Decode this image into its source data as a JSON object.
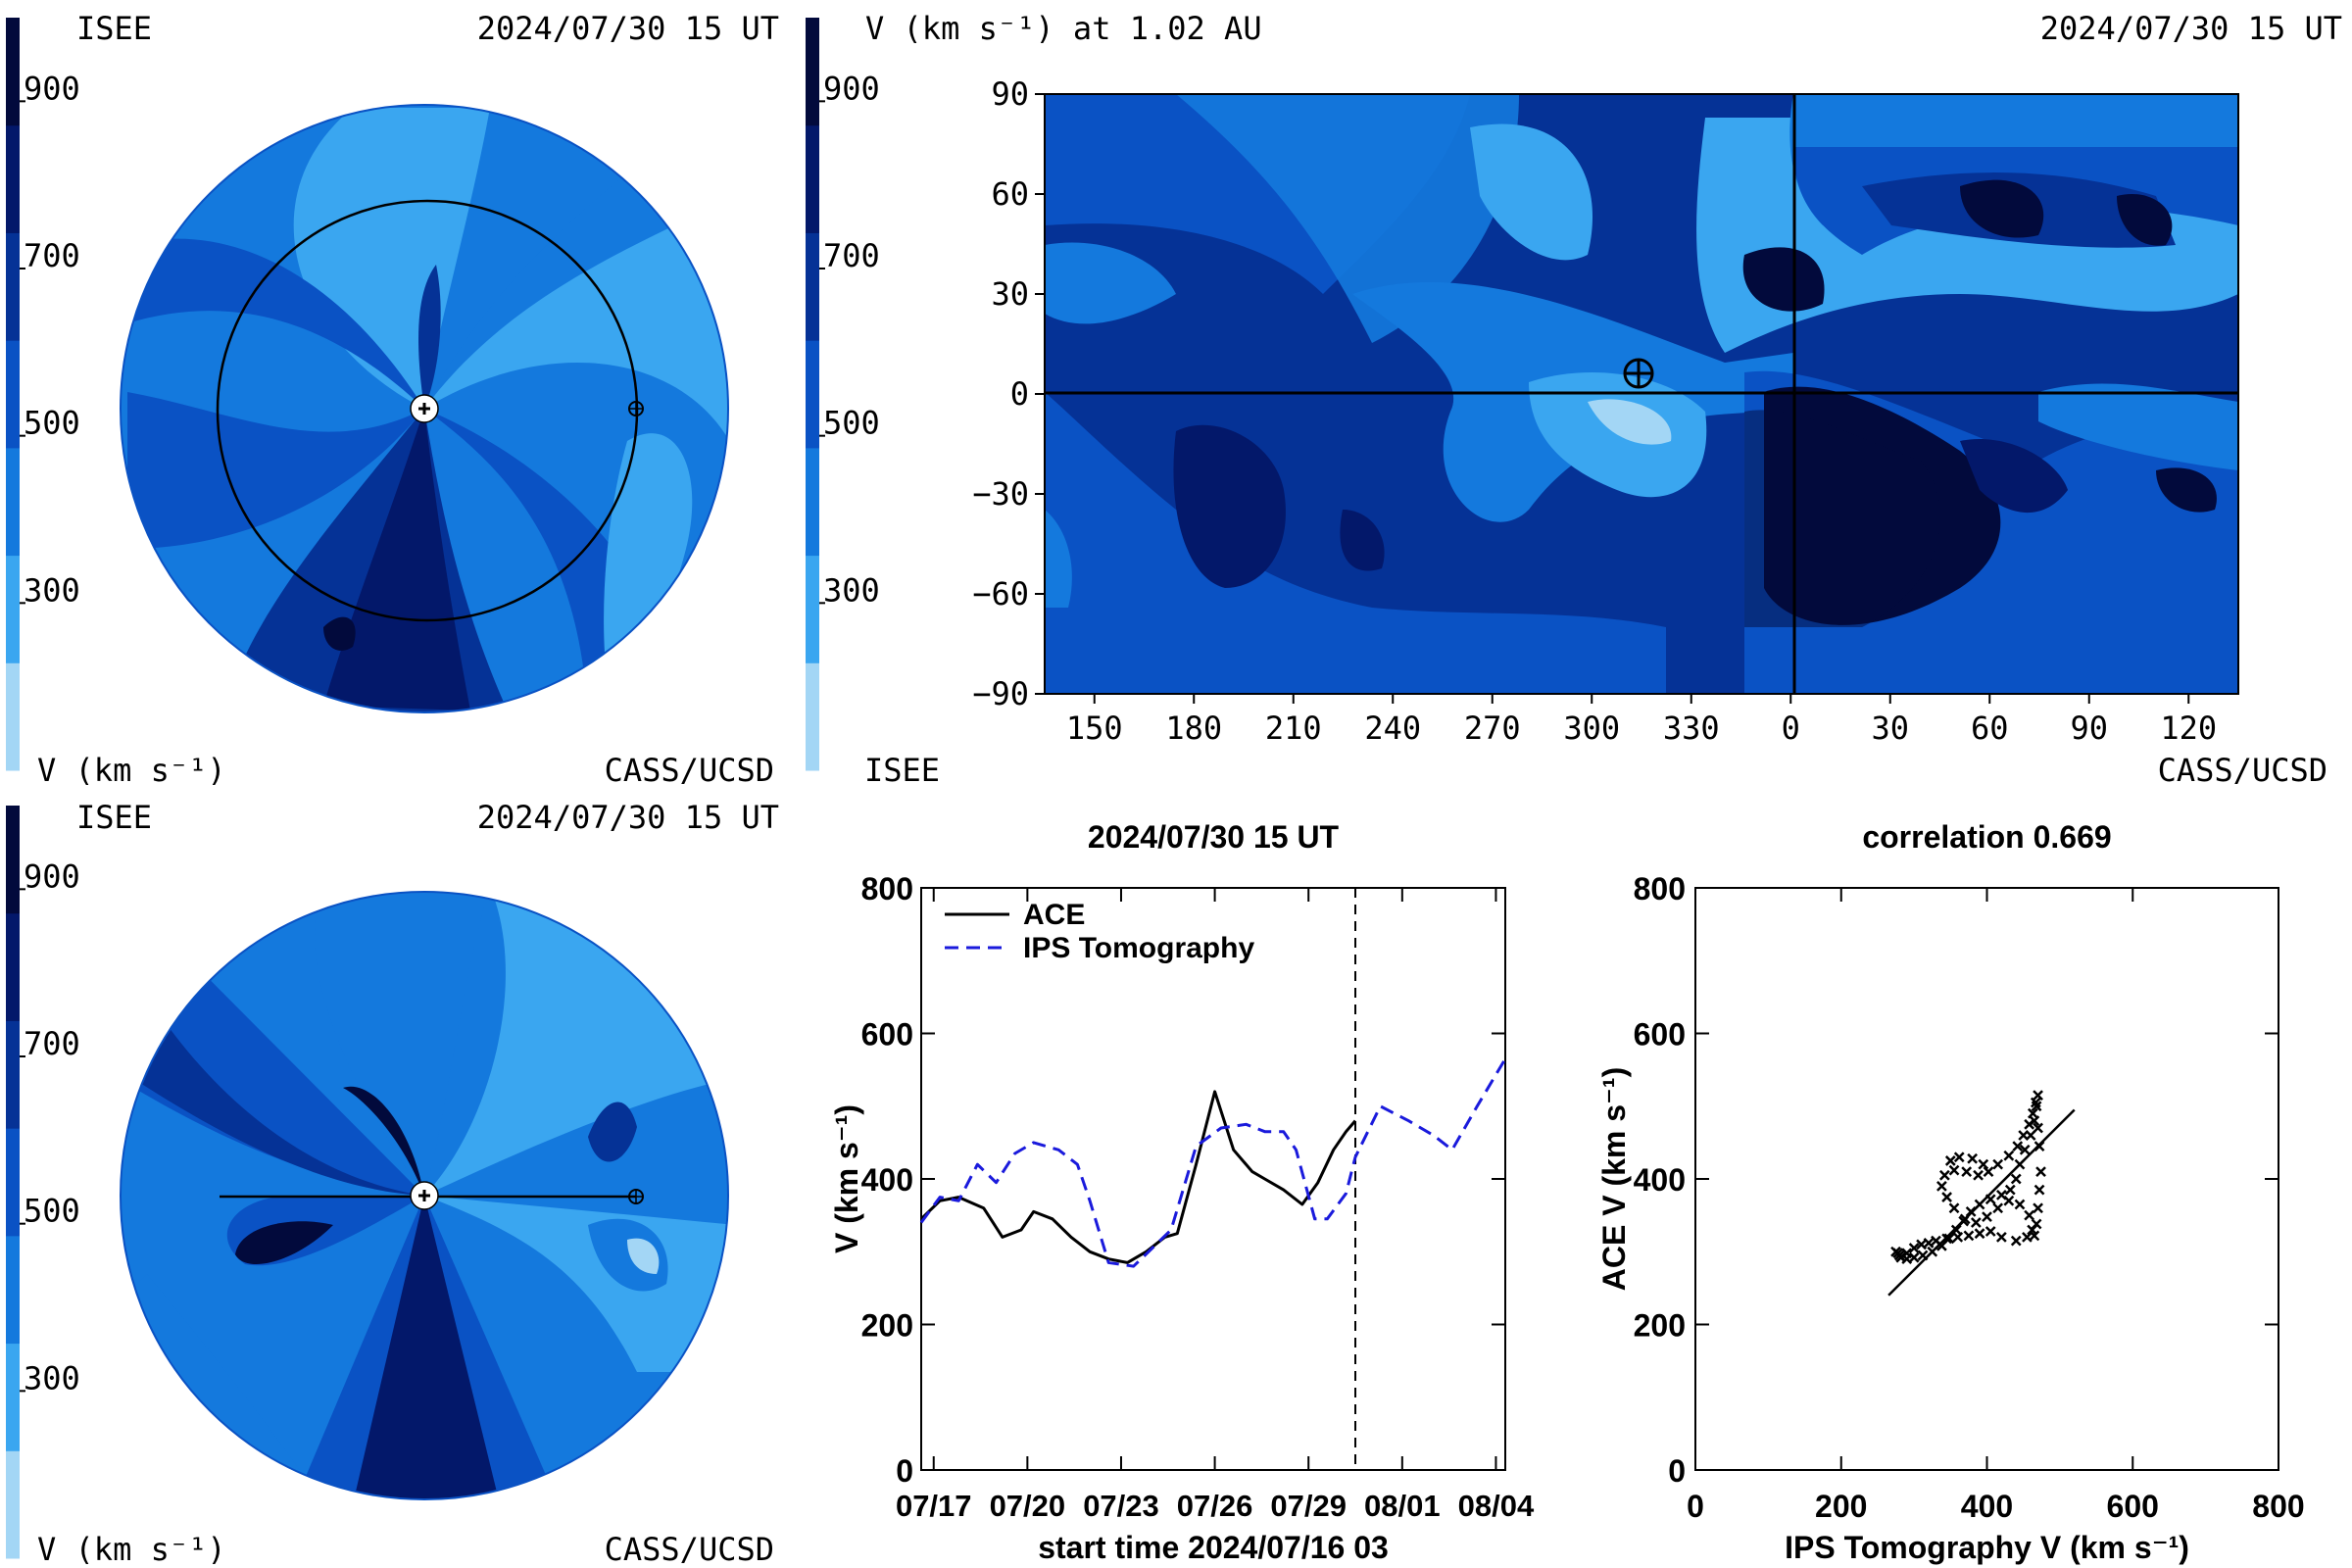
{
  "colors": {
    "scale": [
      "#a3d6f5",
      "#3aa6f0",
      "#1479dd",
      "#0a52c4",
      "#053296",
      "#03186a",
      "#020a3c"
    ],
    "ips_line": "#1a1adc",
    "ace_line": "#000000"
  },
  "colorbar": {
    "ticks": [
      900,
      700,
      500,
      300
    ],
    "unit_label": "V (km s⁻¹)"
  },
  "panel_top_left": {
    "org_left": "ISEE",
    "datetime": "2024/07/30 15 UT",
    "org_right": "CASS/UCSD"
  },
  "panel_bottom_left": {
    "org_left": "ISEE",
    "datetime": "2024/07/30 15 UT",
    "org_right": "CASS/UCSD"
  },
  "map_panel": {
    "title_left": "V (km s⁻¹) at 1.02 AU",
    "datetime": "2024/07/30 15 UT",
    "org_left": "ISEE",
    "org_right": "CASS/UCSD",
    "lat_ticks": [
      90,
      60,
      30,
      0,
      -30,
      -60,
      -90
    ],
    "lon_ticks": [
      150,
      180,
      210,
      240,
      270,
      300,
      330,
      0,
      30,
      60,
      90,
      120
    ]
  },
  "chart_data": [
    {
      "type": "line",
      "title": "2024/07/30 15 UT",
      "xlabel": "start time 2024/07/16 03",
      "ylabel": "V (km s⁻¹)",
      "ylim": [
        0,
        800
      ],
      "yticks": [
        0,
        200,
        400,
        600,
        800
      ],
      "xticks": [
        "07/17",
        "07/20",
        "07/23",
        "07/26",
        "07/29",
        "08/01",
        "08/04"
      ],
      "xlim_days": [
        0.6,
        19.3
      ],
      "current_time_day": 14.5,
      "legend_position": "top-left",
      "series": [
        {
          "name": "ACE",
          "style": "solid",
          "x": [
            0.6,
            1.2,
            1.8,
            2.6,
            3.2,
            3.8,
            4.2,
            4.8,
            5.4,
            6.0,
            6.6,
            7.2,
            7.8,
            8.4,
            8.8,
            9.4,
            10.0,
            10.6,
            11.2,
            11.6,
            12.2,
            12.8,
            13.3,
            13.8,
            14.2,
            14.5
          ],
          "y": [
            345,
            370,
            375,
            360,
            320,
            330,
            355,
            345,
            320,
            300,
            290,
            285,
            300,
            320,
            325,
            420,
            520,
            440,
            410,
            400,
            385,
            365,
            395,
            440,
            465,
            480
          ]
        },
        {
          "name": "IPS Tomography",
          "style": "dashed",
          "x": [
            0.6,
            1.2,
            1.8,
            2.4,
            3.0,
            3.6,
            4.2,
            5.0,
            5.6,
            6.0,
            6.6,
            7.4,
            8.0,
            8.6,
            9.4,
            10.2,
            11.0,
            11.6,
            12.2,
            12.6,
            13.2,
            13.6,
            14.2,
            14.5,
            15.3,
            16.2,
            17.0,
            17.6,
            18.4,
            19.3
          ],
          "y": [
            340,
            375,
            370,
            420,
            395,
            435,
            450,
            440,
            420,
            370,
            285,
            280,
            305,
            330,
            445,
            470,
            475,
            465,
            465,
            440,
            345,
            345,
            380,
            430,
            500,
            480,
            460,
            440,
            500,
            565
          ]
        }
      ]
    },
    {
      "type": "scatter",
      "title": "correlation 0.669",
      "xlabel": "IPS Tomography V (km s⁻¹)",
      "ylabel": "ACE V (km s⁻¹)",
      "xlim": [
        0,
        800
      ],
      "ylim": [
        0,
        800
      ],
      "xticks": [
        0,
        200,
        400,
        600,
        800
      ],
      "yticks": [
        0,
        200,
        400,
        600,
        800
      ],
      "fit_line": [
        [
          265,
          240
        ],
        [
          520,
          495
        ]
      ],
      "points": [
        [
          275,
          300
        ],
        [
          280,
          295
        ],
        [
          290,
          298
        ],
        [
          300,
          305
        ],
        [
          310,
          310
        ],
        [
          320,
          312
        ],
        [
          330,
          315
        ],
        [
          345,
          318
        ],
        [
          360,
          320
        ],
        [
          375,
          322
        ],
        [
          390,
          325
        ],
        [
          405,
          328
        ],
        [
          420,
          320
        ],
        [
          440,
          315
        ],
        [
          455,
          320
        ],
        [
          462,
          330
        ],
        [
          458,
          350
        ],
        [
          445,
          365
        ],
        [
          430,
          370
        ],
        [
          415,
          360
        ],
        [
          400,
          348
        ],
        [
          385,
          340
        ],
        [
          370,
          345
        ],
        [
          355,
          360
        ],
        [
          345,
          375
        ],
        [
          338,
          390
        ],
        [
          342,
          405
        ],
        [
          355,
          412
        ],
        [
          372,
          410
        ],
        [
          388,
          405
        ],
        [
          402,
          410
        ],
        [
          415,
          420
        ],
        [
          430,
          432
        ],
        [
          442,
          445
        ],
        [
          450,
          460
        ],
        [
          458,
          475
        ],
        [
          463,
          490
        ],
        [
          467,
          505
        ],
        [
          470,
          515
        ],
        [
          468,
          500
        ],
        [
          465,
          480
        ],
        [
          460,
          460
        ],
        [
          452,
          440
        ],
        [
          445,
          420
        ],
        [
          440,
          400
        ],
        [
          432,
          385
        ],
        [
          420,
          378
        ],
        [
          405,
          372
        ],
        [
          390,
          365
        ],
        [
          378,
          355
        ],
        [
          368,
          342
        ],
        [
          358,
          330
        ],
        [
          348,
          318
        ],
        [
          338,
          308
        ],
        [
          325,
          300
        ],
        [
          312,
          295
        ],
        [
          300,
          292
        ],
        [
          290,
          290
        ],
        [
          282,
          292
        ],
        [
          278,
          298
        ],
        [
          350,
          425
        ],
        [
          362,
          430
        ],
        [
          380,
          428
        ],
        [
          395,
          420
        ],
        [
          470,
          470
        ],
        [
          472,
          445
        ],
        [
          474,
          410
        ],
        [
          472,
          385
        ],
        [
          470,
          360
        ],
        [
          468,
          338
        ],
        [
          465,
          322
        ]
      ]
    }
  ]
}
